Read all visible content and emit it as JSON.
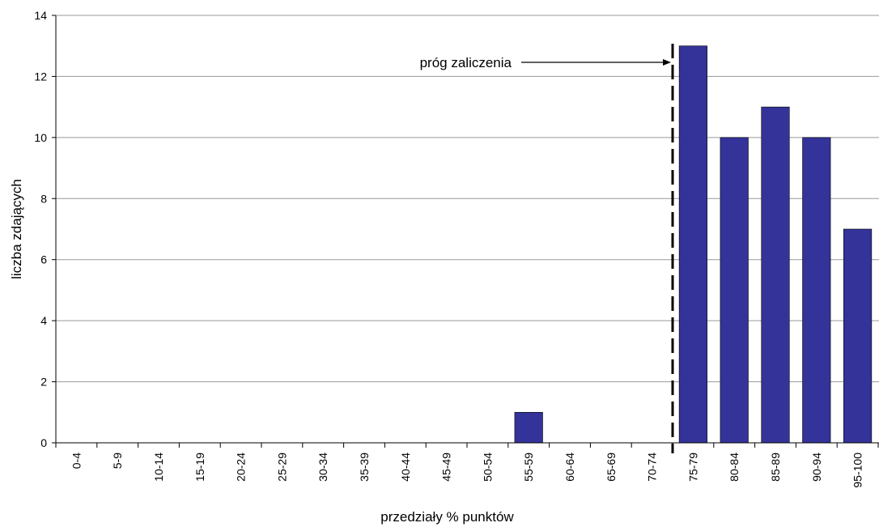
{
  "chart_data": {
    "type": "bar",
    "title": "",
    "xlabel": "przedziały % punktów",
    "ylabel": "liczba zdających",
    "categories": [
      "0-4",
      "5-9",
      "10-14",
      "15-19",
      "20-24",
      "25-29",
      "30-34",
      "35-39",
      "40-44",
      "45-49",
      "50-54",
      "55-59",
      "60-64",
      "65-69",
      "70-74",
      "75-79",
      "80-84",
      "85-89",
      "90-94",
      "95-100"
    ],
    "values": [
      0,
      0,
      0,
      0,
      0,
      0,
      0,
      0,
      0,
      0,
      0,
      1,
      0,
      0,
      0,
      13,
      10,
      11,
      10,
      7
    ],
    "ylim": [
      0,
      14
    ],
    "yticks": [
      0,
      2,
      4,
      6,
      8,
      10,
      12,
      14
    ],
    "grid": true,
    "bar_color": "#333399",
    "threshold": {
      "label": "próg zaliczenia",
      "between": [
        "70-74",
        "75-79"
      ]
    }
  }
}
